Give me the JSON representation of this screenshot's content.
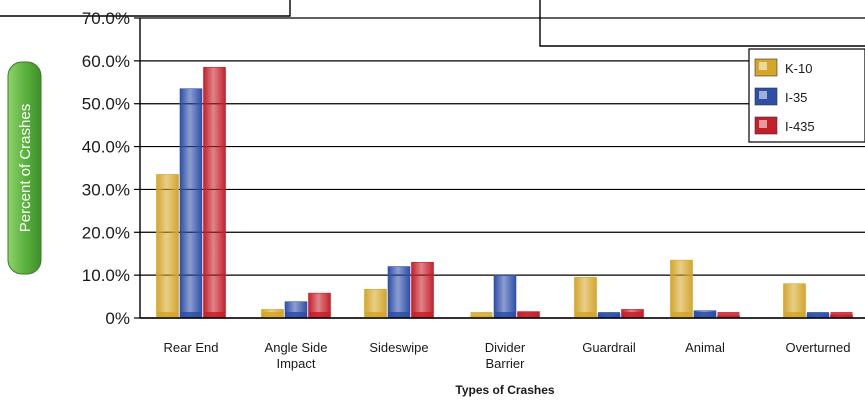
{
  "chart_data": {
    "type": "bar",
    "xlabel": "Types of Crashes",
    "ylabel": "Percent of Crashes",
    "ylim": [
      0,
      70
    ],
    "yticks": [
      "0%",
      "10.0%",
      "20.0%",
      "30.0%",
      "40.0%",
      "50.0%",
      "60.0%",
      "70.0%"
    ],
    "categories": [
      [
        "Rear End"
      ],
      [
        "Angle Side",
        "Impact"
      ],
      [
        "Sideswipe"
      ],
      [
        "Divider",
        "Barrier"
      ],
      [
        "Guardrail"
      ],
      [
        "Animal"
      ],
      [
        "Overturned"
      ]
    ],
    "series": [
      {
        "name": "K-10",
        "color": "#d4a62a",
        "values": [
          33.5,
          2.0,
          6.7,
          0.2,
          9.5,
          13.5,
          8.0
        ]
      },
      {
        "name": "I-35",
        "color": "#2e4fa8",
        "values": [
          53.5,
          3.8,
          12.0,
          10.0,
          1.0,
          1.7,
          1.0
        ]
      },
      {
        "name": "I-435",
        "color": "#c4202a",
        "values": [
          58.5,
          5.8,
          13.0,
          1.5,
          2.0,
          0.5,
          0.7
        ]
      }
    ],
    "grid": true,
    "legend_position": "top-right"
  }
}
